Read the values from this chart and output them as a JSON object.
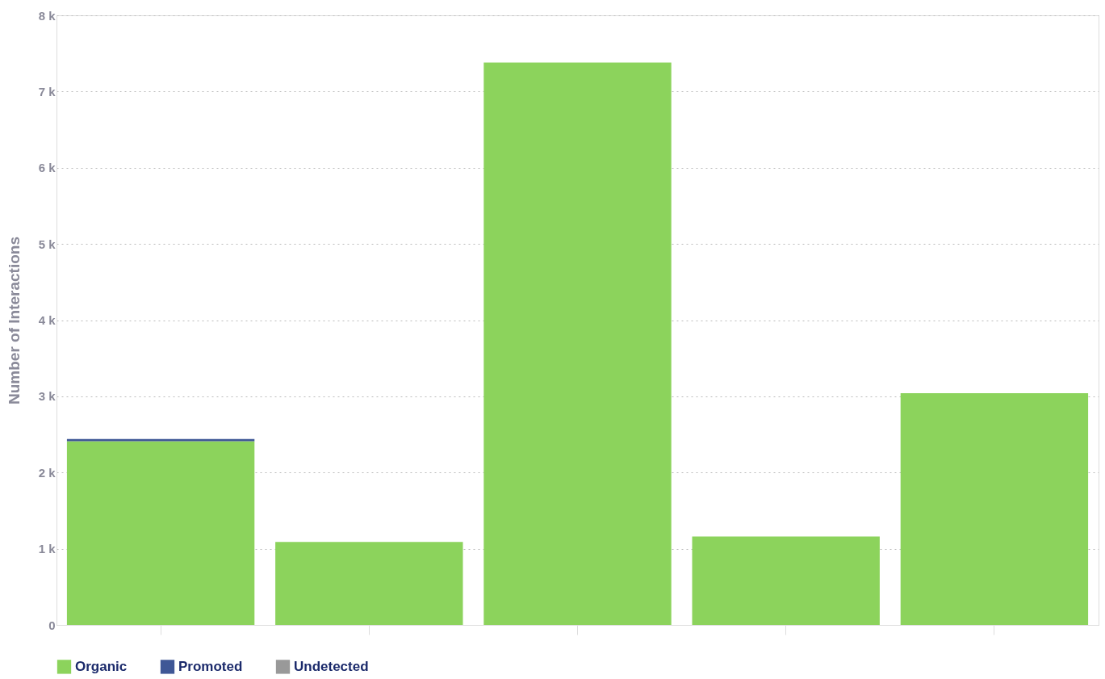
{
  "chart_data": {
    "type": "bar",
    "stacked": true,
    "ylabel": "Number of Interactions",
    "categories": [
      null,
      null,
      null,
      null,
      null
    ],
    "series": [
      {
        "name": "Organic",
        "color": "#8cd35c",
        "values": [
          2410,
          1090,
          7380,
          1160,
          3040
        ]
      },
      {
        "name": "Promoted",
        "color": "#3f5796",
        "values": [
          30,
          0,
          0,
          0,
          0
        ]
      },
      {
        "name": "Undetected",
        "color": "#999999",
        "values": [
          0,
          0,
          0,
          0,
          0
        ]
      }
    ],
    "ylim": [
      0,
      8000
    ],
    "yticks": [
      {
        "value": 0,
        "label": "0"
      },
      {
        "value": 1000,
        "label": "1 k"
      },
      {
        "value": 2000,
        "label": "2 k"
      },
      {
        "value": 3000,
        "label": "3 k"
      },
      {
        "value": 4000,
        "label": "4 k"
      },
      {
        "value": 5000,
        "label": "5 k"
      },
      {
        "value": 6000,
        "label": "6 k"
      },
      {
        "value": 7000,
        "label": "7 k"
      },
      {
        "value": 8000,
        "label": "8 k"
      }
    ],
    "grid": "y",
    "legend": "bottom"
  }
}
